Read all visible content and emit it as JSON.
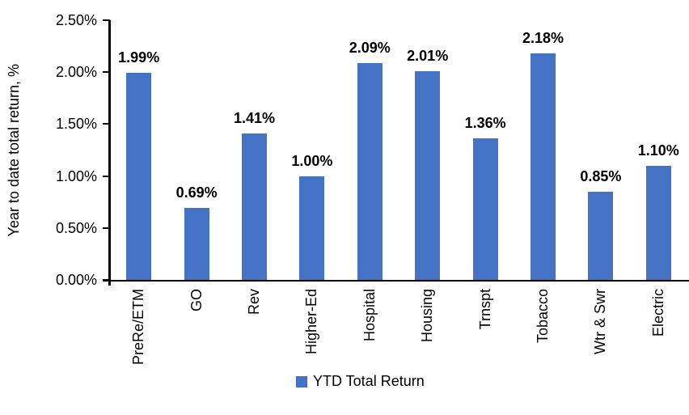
{
  "chart_data": {
    "type": "bar",
    "title": "",
    "categories": [
      "PreRe/ETM",
      "GO",
      "Rev",
      "Higher-Ed",
      "Hospital",
      "Housing",
      "Trnspt",
      "Tobacco",
      "Wtr & Swr",
      "Electric"
    ],
    "series": [
      {
        "name": "YTD Total Return",
        "values": [
          1.99,
          0.69,
          1.41,
          1.0,
          2.09,
          2.01,
          1.36,
          2.18,
          0.85,
          1.1
        ],
        "value_labels": [
          "1.99%",
          "0.69%",
          "1.41%",
          "1.00%",
          "2.09%",
          "2.01%",
          "1.36%",
          "2.18%",
          "0.85%",
          "1.10%"
        ]
      }
    ],
    "xlabel": "",
    "ylabel": "Year to date total return, %",
    "ylim": [
      0,
      2.5
    ],
    "y_tick_step": 0.5,
    "y_tick_labels": [
      "0.00%",
      "0.50%",
      "1.00%",
      "1.50%",
      "2.00%",
      "2.50%"
    ],
    "grid": "off",
    "legend_position": "bottom-center",
    "bar_color": "#4472C4",
    "axis_color": "#000000",
    "label_color": "#000000"
  },
  "legend": {
    "label": "YTD Total Return",
    "swatch_color": "#4472C4"
  }
}
